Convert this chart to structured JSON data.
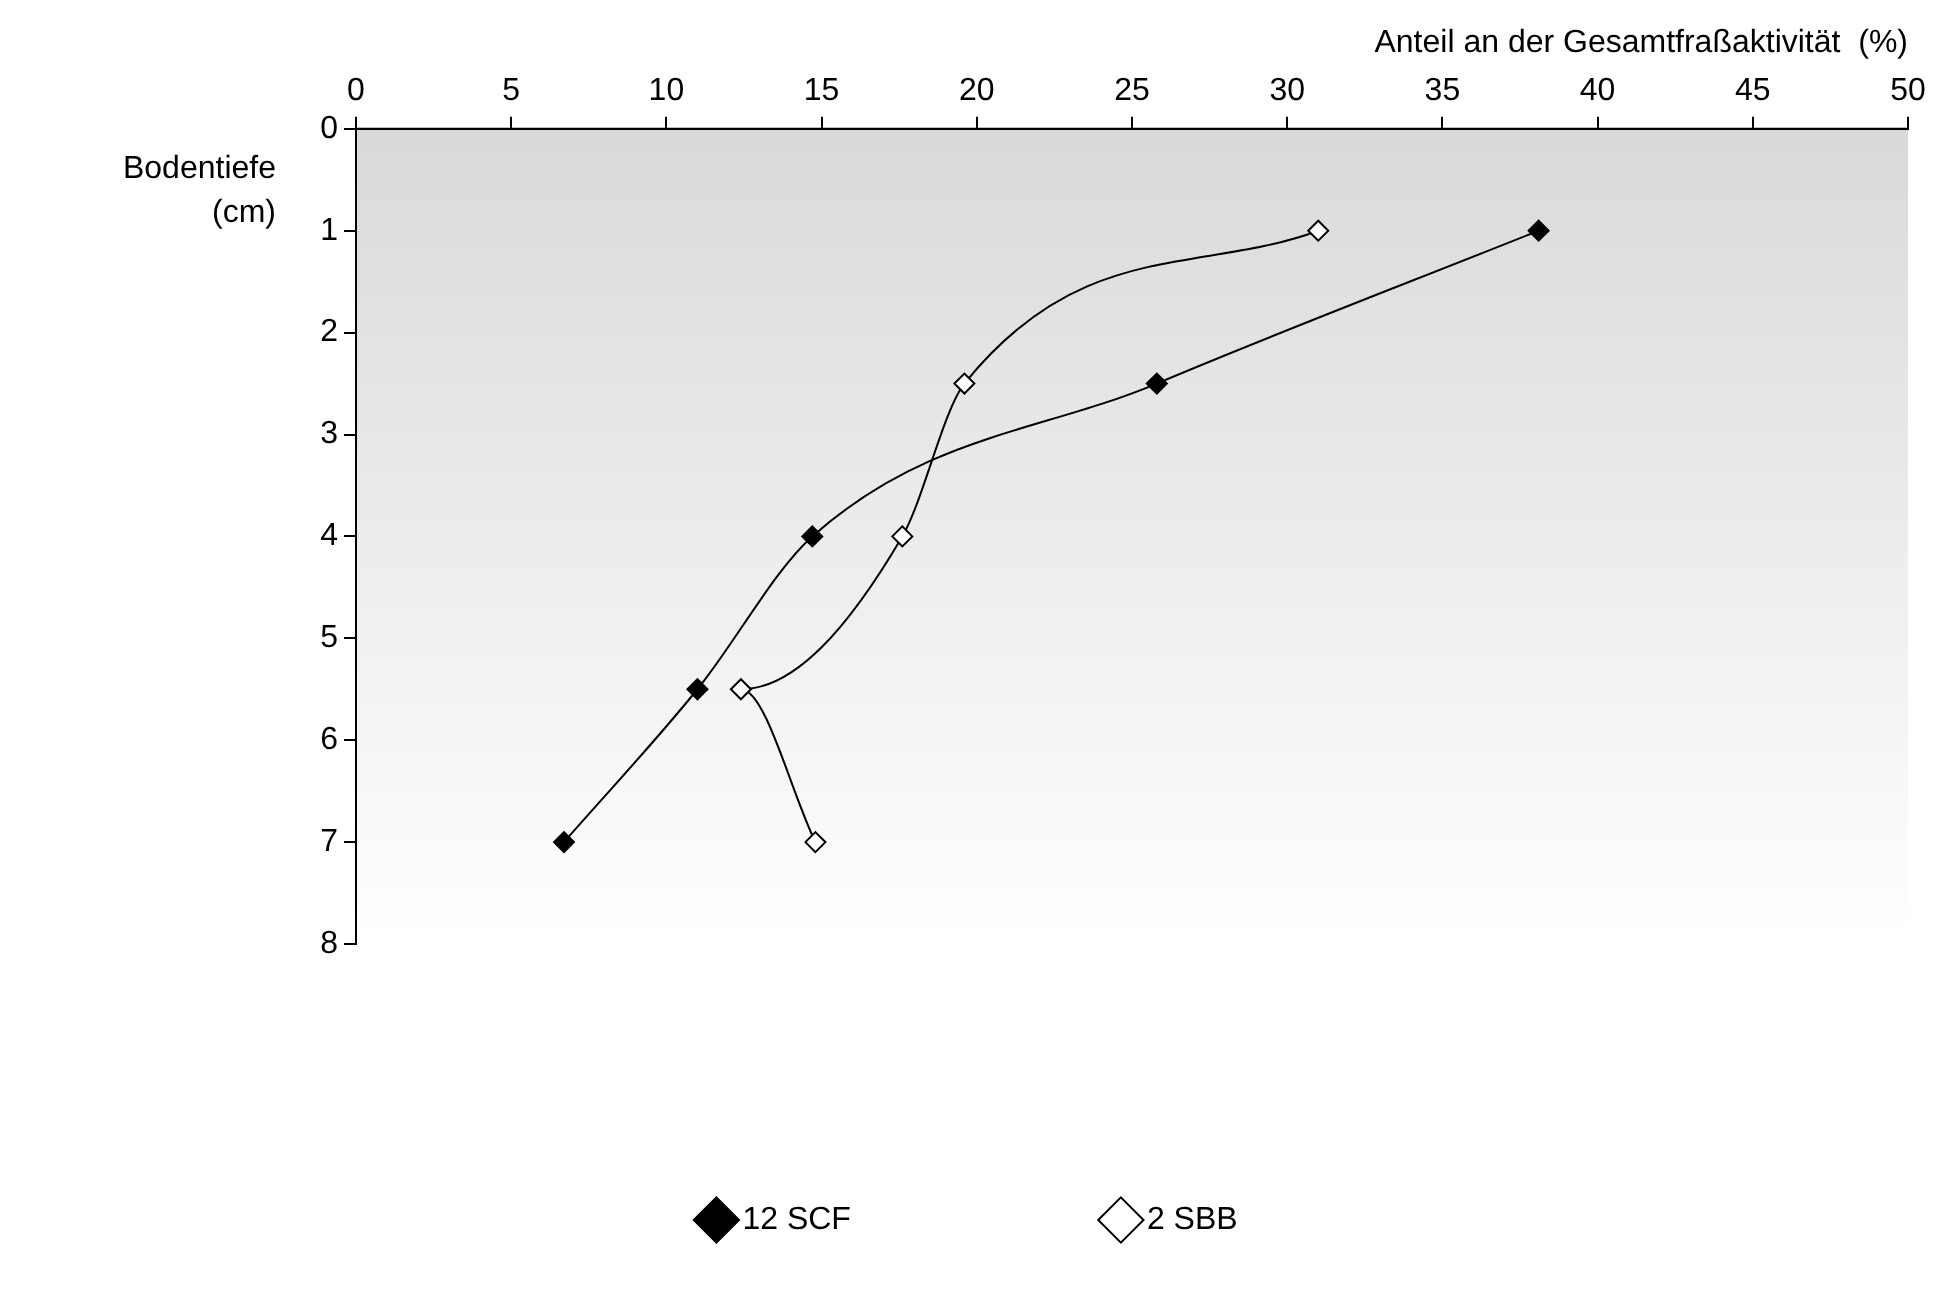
{
  "chart_data": {
    "type": "line",
    "xlabel": "Anteil an der Gesamtfraßaktivität  (%)",
    "ylabel": "Bodentiefe (cm)",
    "xlim": [
      0,
      50
    ],
    "xticks": [
      0,
      5,
      10,
      15,
      20,
      25,
      30,
      35,
      40,
      45,
      50
    ],
    "ylim": [
      8,
      0
    ],
    "yticks": [
      0,
      1,
      2,
      3,
      4,
      5,
      6,
      7,
      8
    ],
    "grid": false,
    "legend": "bottom",
    "marker": "diamond",
    "line_style": "solid",
    "series": [
      {
        "name": "12 SCF",
        "color": "#000000",
        "x": [
          38.1,
          25.8,
          14.7,
          11.0,
          6.7
        ],
        "values": [
          1,
          2.5,
          4,
          5.5,
          7
        ]
      },
      {
        "name": "2 SBB",
        "color": "#ffffff",
        "x": [
          31.0,
          19.6,
          17.6,
          12.4,
          14.8
        ],
        "values": [
          1,
          2.5,
          4,
          5.5,
          7
        ]
      }
    ]
  }
}
